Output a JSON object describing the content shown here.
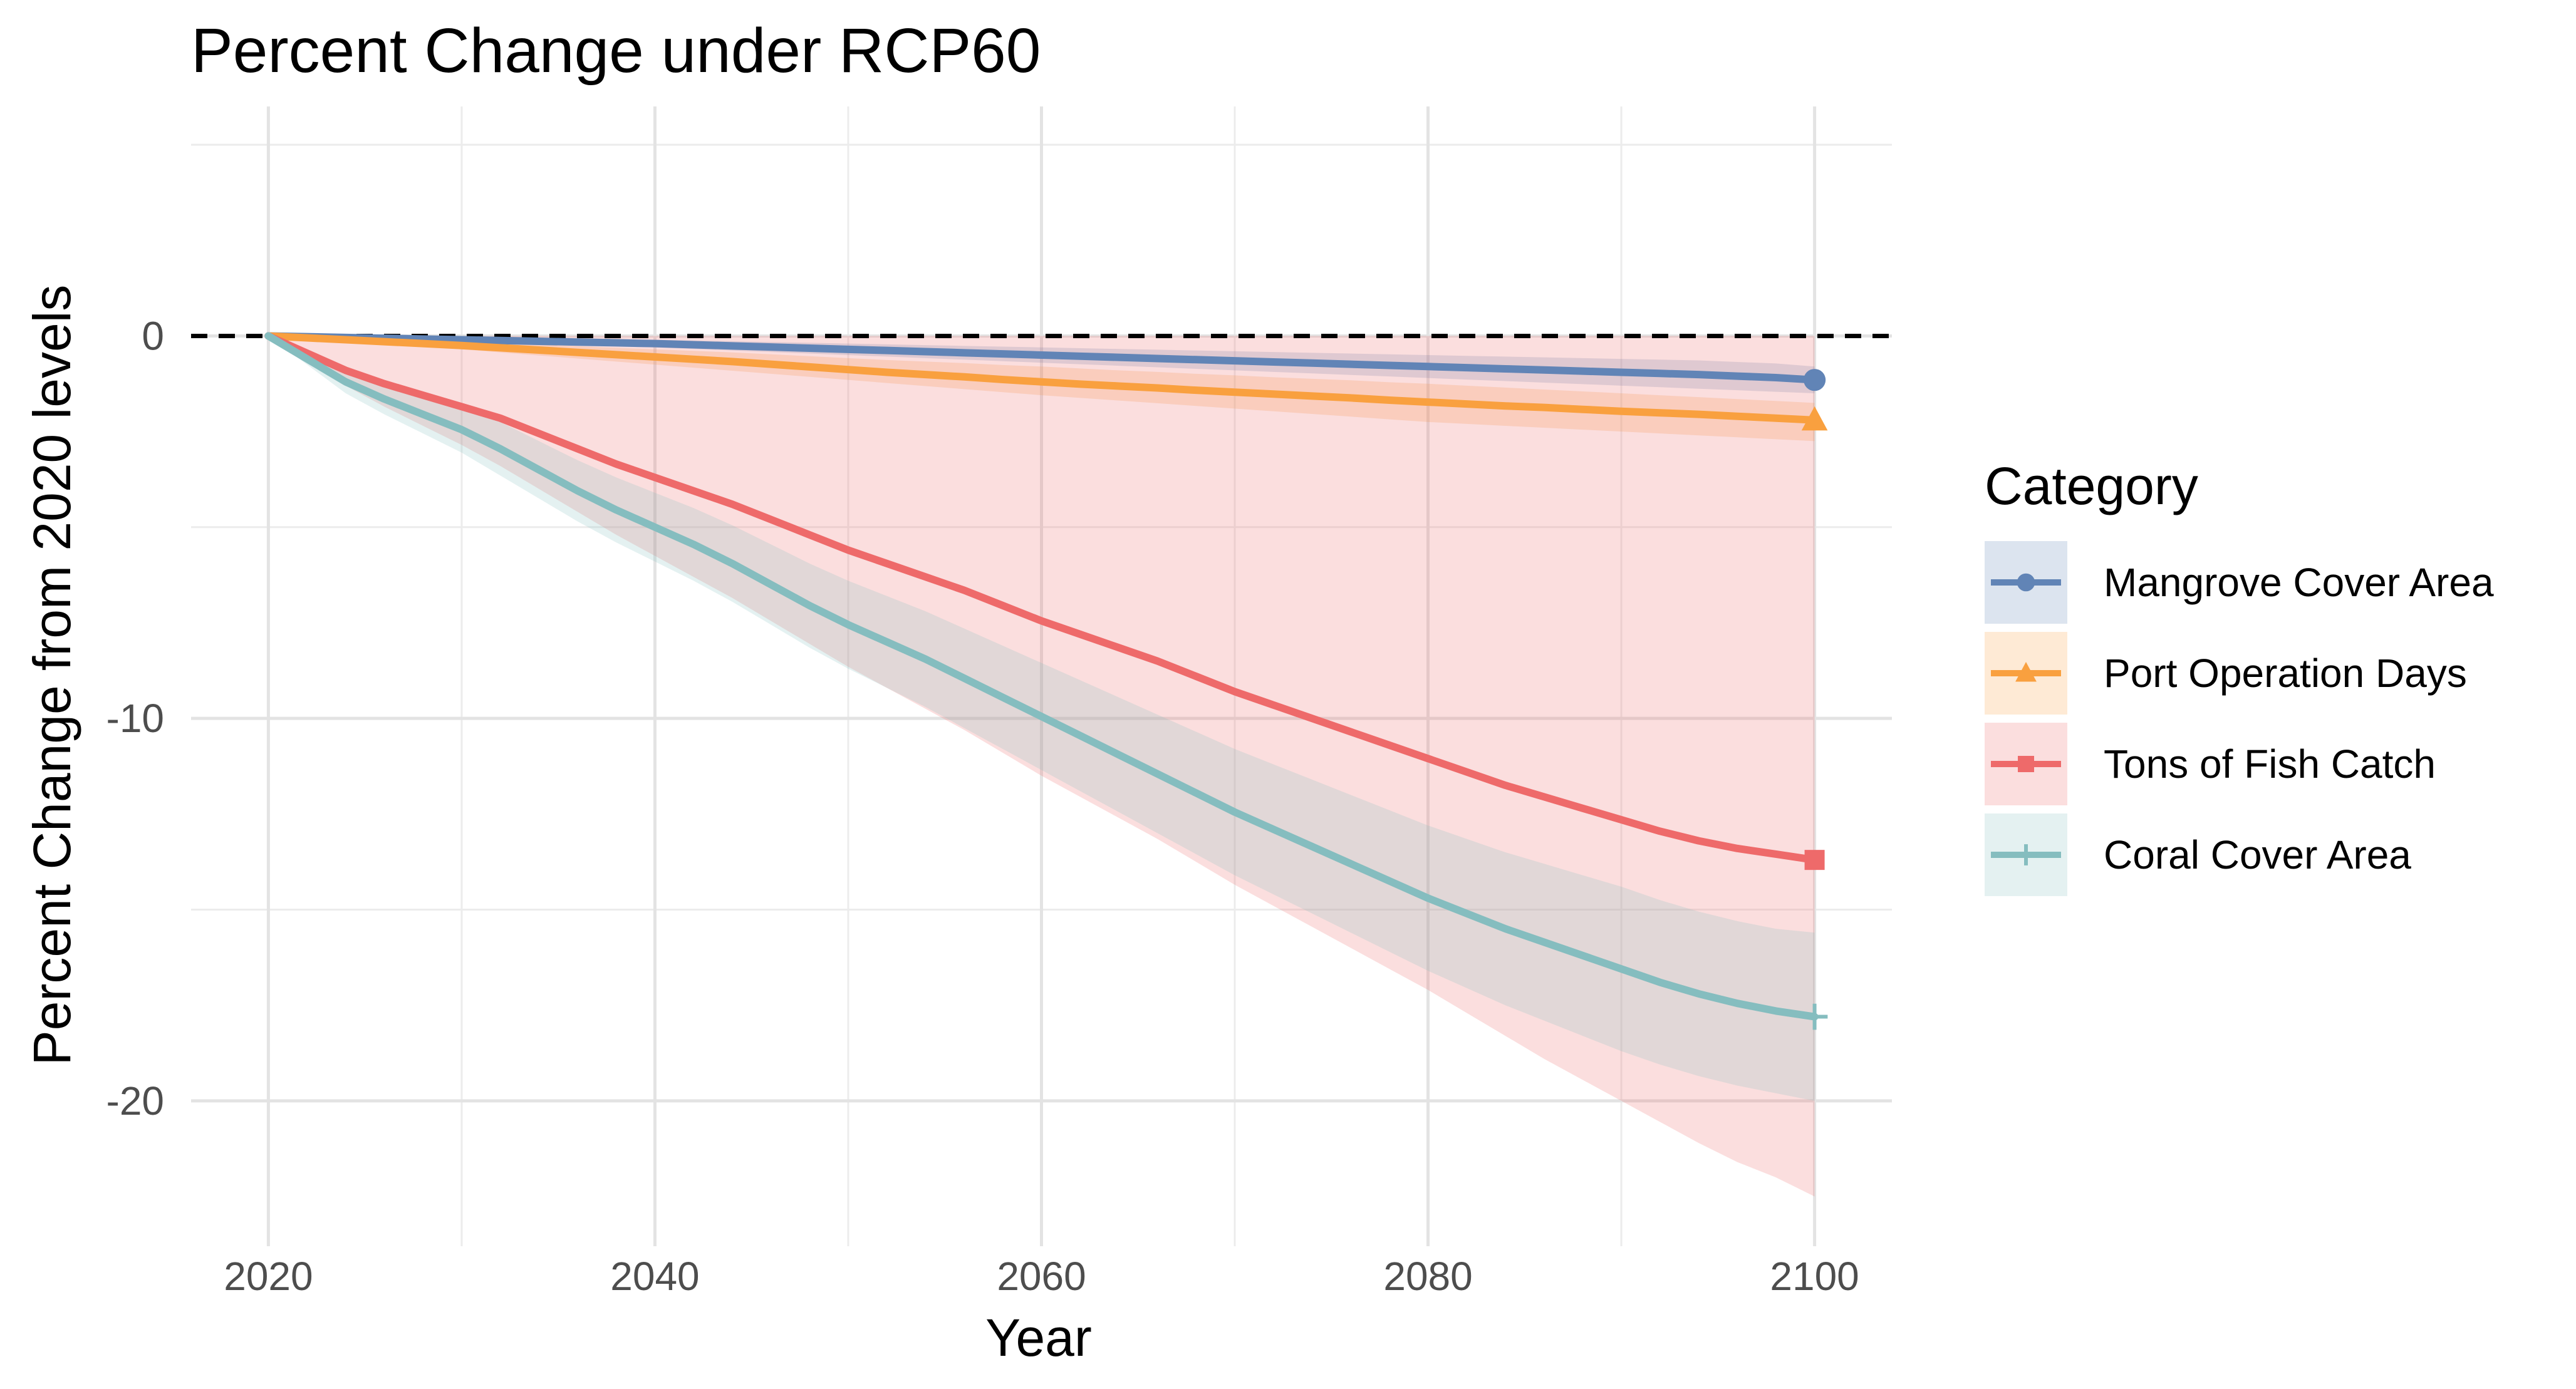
{
  "chart_data": {
    "type": "line",
    "title": "Percent Change under RCP60",
    "xlabel": "Year",
    "ylabel": "Percent Change from 2020 levels",
    "xlim": [
      2016,
      2104
    ],
    "ylim": [
      -23.8,
      6.0
    ],
    "x_ticks": [
      2020,
      2040,
      2060,
      2080,
      2100
    ],
    "x_tick_labels": [
      "2020",
      "2040",
      "2060",
      "2080",
      "2100"
    ],
    "x_minor_ticks": [
      2030,
      2050,
      2070,
      2090
    ],
    "y_ticks": [
      0,
      -10,
      -20
    ],
    "y_tick_labels": [
      "0",
      "-10",
      "-20"
    ],
    "y_minor_ticks": [
      5,
      -5,
      -15
    ],
    "grid": true,
    "reference_line": {
      "y": 0,
      "style": "dashed"
    },
    "legend": {
      "title": "Category",
      "position": "right"
    },
    "x": [
      2020,
      2022,
      2024,
      2026,
      2028,
      2030,
      2032,
      2034,
      2036,
      2038,
      2040,
      2042,
      2044,
      2046,
      2048,
      2050,
      2052,
      2054,
      2056,
      2058,
      2060,
      2062,
      2064,
      2066,
      2068,
      2070,
      2072,
      2074,
      2076,
      2078,
      2080,
      2082,
      2084,
      2086,
      2088,
      2090,
      2092,
      2094,
      2096,
      2098,
      2100
    ],
    "series": [
      {
        "name": "Mangrove Cover Area",
        "color": "#6184B6",
        "marker": "circle",
        "values": [
          0.0,
          -0.02,
          -0.04,
          -0.06,
          -0.08,
          -0.1,
          -0.12,
          -0.14,
          -0.16,
          -0.18,
          -0.2,
          -0.23,
          -0.26,
          -0.29,
          -0.32,
          -0.35,
          -0.38,
          -0.41,
          -0.44,
          -0.47,
          -0.5,
          -0.53,
          -0.56,
          -0.59,
          -0.62,
          -0.65,
          -0.68,
          -0.71,
          -0.74,
          -0.77,
          -0.8,
          -0.83,
          -0.86,
          -0.89,
          -0.92,
          -0.95,
          -0.98,
          -1.01,
          -1.05,
          -1.09,
          -1.15
        ],
        "lower": [
          0.0,
          -0.03,
          -0.06,
          -0.09,
          -0.12,
          -0.15,
          -0.18,
          -0.21,
          -0.24,
          -0.27,
          -0.3,
          -0.34,
          -0.38,
          -0.42,
          -0.46,
          -0.5,
          -0.54,
          -0.58,
          -0.62,
          -0.66,
          -0.7,
          -0.74,
          -0.78,
          -0.82,
          -0.86,
          -0.9,
          -0.94,
          -0.98,
          -1.02,
          -1.06,
          -1.1,
          -1.14,
          -1.18,
          -1.22,
          -1.26,
          -1.3,
          -1.34,
          -1.38,
          -1.42,
          -1.46,
          -1.5
        ],
        "upper": [
          0.0,
          -0.01,
          -0.02,
          -0.03,
          -0.04,
          -0.05,
          -0.06,
          -0.07,
          -0.08,
          -0.09,
          -0.1,
          -0.12,
          -0.14,
          -0.16,
          -0.18,
          -0.2,
          -0.22,
          -0.24,
          -0.26,
          -0.28,
          -0.3,
          -0.32,
          -0.34,
          -0.36,
          -0.38,
          -0.4,
          -0.42,
          -0.44,
          -0.46,
          -0.48,
          -0.5,
          -0.52,
          -0.54,
          -0.56,
          -0.58,
          -0.6,
          -0.62,
          -0.64,
          -0.68,
          -0.72,
          -0.8
        ]
      },
      {
        "name": "Port Operation Days",
        "color": "#F9A03F",
        "marker": "triangle",
        "values": [
          0.0,
          -0.05,
          -0.1,
          -0.15,
          -0.2,
          -0.25,
          -0.31,
          -0.37,
          -0.43,
          -0.49,
          -0.55,
          -0.61,
          -0.67,
          -0.74,
          -0.81,
          -0.88,
          -0.95,
          -1.01,
          -1.07,
          -1.14,
          -1.2,
          -1.26,
          -1.31,
          -1.36,
          -1.42,
          -1.47,
          -1.52,
          -1.57,
          -1.62,
          -1.68,
          -1.73,
          -1.78,
          -1.83,
          -1.87,
          -1.92,
          -1.97,
          -2.01,
          -2.05,
          -2.1,
          -2.15,
          -2.2
        ],
        "lower": [
          0.0,
          -0.07,
          -0.14,
          -0.21,
          -0.28,
          -0.35,
          -0.43,
          -0.51,
          -0.59,
          -0.67,
          -0.75,
          -0.83,
          -0.91,
          -0.99,
          -1.07,
          -1.15,
          -1.23,
          -1.31,
          -1.39,
          -1.47,
          -1.55,
          -1.62,
          -1.69,
          -1.76,
          -1.83,
          -1.9,
          -1.97,
          -2.04,
          -2.11,
          -2.18,
          -2.25,
          -2.3,
          -2.35,
          -2.4,
          -2.45,
          -2.5,
          -2.55,
          -2.6,
          -2.65,
          -2.7,
          -2.75
        ],
        "upper": [
          0.0,
          -0.03,
          -0.06,
          -0.09,
          -0.12,
          -0.15,
          -0.19,
          -0.23,
          -0.27,
          -0.31,
          -0.35,
          -0.39,
          -0.43,
          -0.48,
          -0.53,
          -0.58,
          -0.63,
          -0.67,
          -0.71,
          -0.76,
          -0.8,
          -0.85,
          -0.9,
          -0.94,
          -0.99,
          -1.03,
          -1.08,
          -1.12,
          -1.16,
          -1.21,
          -1.25,
          -1.3,
          -1.35,
          -1.4,
          -1.45,
          -1.5,
          -1.55,
          -1.6,
          -1.65,
          -1.7,
          -1.75
        ]
      },
      {
        "name": "Tons of Fish Catch",
        "color": "#EE6A6A",
        "marker": "square",
        "values": [
          0.0,
          -0.45,
          -0.9,
          -1.25,
          -1.55,
          -1.85,
          -2.15,
          -2.55,
          -2.95,
          -3.35,
          -3.7,
          -4.05,
          -4.4,
          -4.8,
          -5.2,
          -5.6,
          -5.95,
          -6.3,
          -6.65,
          -7.05,
          -7.45,
          -7.8,
          -8.15,
          -8.5,
          -8.9,
          -9.3,
          -9.65,
          -10.0,
          -10.35,
          -10.7,
          -11.05,
          -11.4,
          -11.75,
          -12.05,
          -12.35,
          -12.65,
          -12.95,
          -13.2,
          -13.4,
          -13.55,
          -13.7
        ],
        "lower": [
          0.0,
          -0.65,
          -1.3,
          -1.85,
          -2.35,
          -2.85,
          -3.4,
          -4.0,
          -4.6,
          -5.2,
          -5.75,
          -6.3,
          -6.85,
          -7.45,
          -8.05,
          -8.65,
          -9.2,
          -9.75,
          -10.3,
          -10.9,
          -11.5,
          -12.05,
          -12.6,
          -13.15,
          -13.75,
          -14.35,
          -14.9,
          -15.45,
          -16.0,
          -16.55,
          -17.1,
          -17.7,
          -18.3,
          -18.9,
          -19.45,
          -20.0,
          -20.55,
          -21.1,
          -21.6,
          -22.0,
          -22.5
        ],
        "upper": [
          0.0,
          0.0,
          0.0,
          0.0,
          0.0,
          0.0,
          0.0,
          0.0,
          0.0,
          0.0,
          0.0,
          0.0,
          0.0,
          0.0,
          0.0,
          0.0,
          0.0,
          0.0,
          0.0,
          0.0,
          0.0,
          0.0,
          0.0,
          0.0,
          0.0,
          0.0,
          0.0,
          0.0,
          0.0,
          0.0,
          0.0,
          0.0,
          0.0,
          0.0,
          0.0,
          0.0,
          0.0,
          0.0,
          0.0,
          0.0,
          0.0
        ]
      },
      {
        "name": "Coral Cover Area",
        "color": "#85BDBF",
        "marker": "plus",
        "values": [
          0.0,
          -0.6,
          -1.2,
          -1.65,
          -2.05,
          -2.45,
          -2.95,
          -3.5,
          -4.05,
          -4.55,
          -5.0,
          -5.45,
          -5.95,
          -6.5,
          -7.05,
          -7.55,
          -8.0,
          -8.45,
          -8.95,
          -9.45,
          -9.95,
          -10.45,
          -10.95,
          -11.45,
          -11.95,
          -12.45,
          -12.9,
          -13.35,
          -13.8,
          -14.25,
          -14.7,
          -15.1,
          -15.5,
          -15.85,
          -16.2,
          -16.55,
          -16.9,
          -17.2,
          -17.45,
          -17.65,
          -17.8
        ],
        "lower": [
          0.0,
          -0.75,
          -1.5,
          -2.05,
          -2.55,
          -3.05,
          -3.65,
          -4.25,
          -4.85,
          -5.4,
          -5.9,
          -6.4,
          -6.95,
          -7.55,
          -8.15,
          -8.7,
          -9.2,
          -9.7,
          -10.25,
          -10.8,
          -11.35,
          -11.9,
          -12.45,
          -13.0,
          -13.55,
          -14.1,
          -14.6,
          -15.1,
          -15.6,
          -16.1,
          -16.6,
          -17.05,
          -17.5,
          -17.9,
          -18.3,
          -18.7,
          -19.05,
          -19.35,
          -19.6,
          -19.8,
          -20.0
        ],
        "upper": [
          0.0,
          -0.45,
          -0.9,
          -1.25,
          -1.55,
          -1.85,
          -2.25,
          -2.75,
          -3.25,
          -3.7,
          -4.1,
          -4.5,
          -4.95,
          -5.45,
          -5.95,
          -6.4,
          -6.8,
          -7.2,
          -7.65,
          -8.1,
          -8.55,
          -9.0,
          -9.45,
          -9.9,
          -10.35,
          -10.8,
          -11.2,
          -11.6,
          -12.0,
          -12.4,
          -12.8,
          -13.15,
          -13.5,
          -13.8,
          -14.1,
          -14.4,
          -14.75,
          -15.05,
          -15.3,
          -15.5,
          -15.6
        ]
      }
    ]
  }
}
